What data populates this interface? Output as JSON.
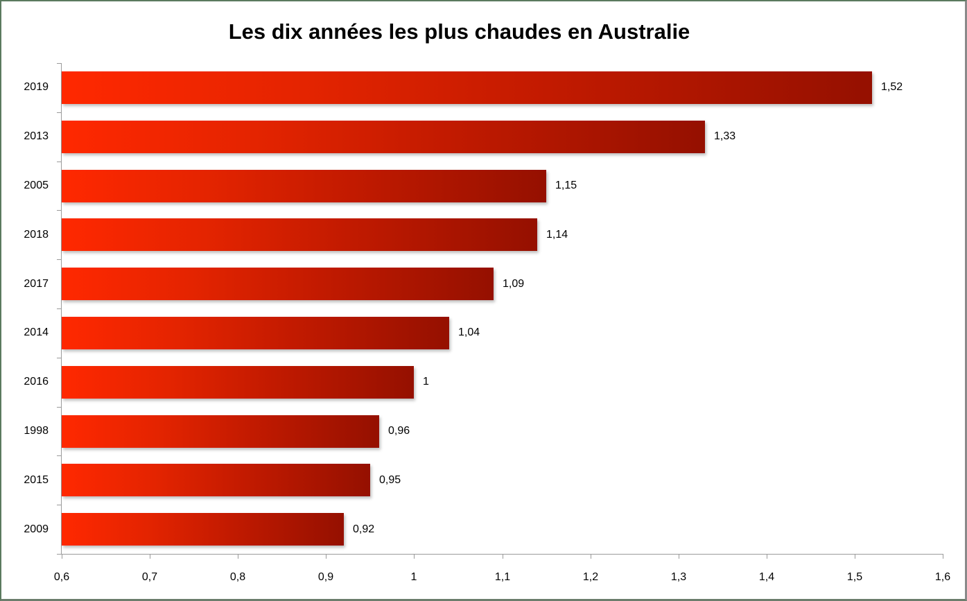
{
  "chart_data": {
    "type": "bar",
    "orientation": "horizontal",
    "title": "Les dix années les plus chaudes en Australie",
    "xlabel": "",
    "ylabel": "",
    "categories": [
      "2019",
      "2013",
      "2005",
      "2018",
      "2017",
      "2014",
      "2016",
      "1998",
      "2015",
      "2009"
    ],
    "values": [
      1.52,
      1.33,
      1.15,
      1.14,
      1.09,
      1.04,
      1.0,
      0.96,
      0.95,
      0.92
    ],
    "value_labels": [
      "1,52",
      "1,33",
      "1,15",
      "1,14",
      "1,09",
      "1,04",
      "1",
      "0,96",
      "0,95",
      "0,92"
    ],
    "xlim": [
      0.6,
      1.6
    ],
    "x_ticks": [
      0.6,
      0.7,
      0.8,
      0.9,
      1.0,
      1.1,
      1.2,
      1.3,
      1.4,
      1.5,
      1.6
    ],
    "x_tick_labels": [
      "0,6",
      "0,7",
      "0,8",
      "0,9",
      "1",
      "1,1",
      "1,2",
      "1,3",
      "1,4",
      "1,5",
      "1,6"
    ],
    "grid": false,
    "legend": null,
    "colors": {
      "bar_start": "#ff2800",
      "bar_end": "#951000",
      "axis": "#9a9a9a"
    }
  }
}
